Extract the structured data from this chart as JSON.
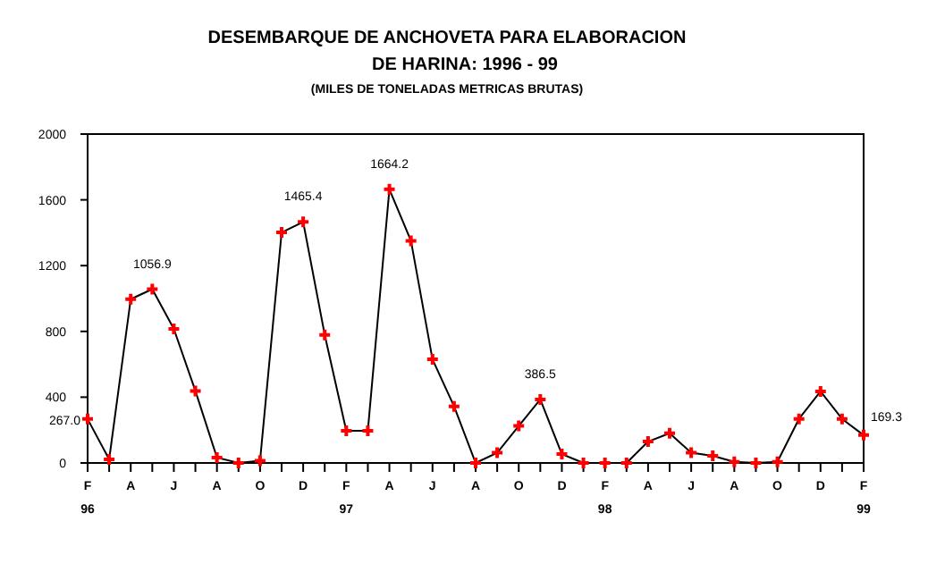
{
  "chart_data": {
    "type": "line",
    "title": "DESEMBARQUE DE ANCHOVETA PARA ELABORACION",
    "subtitle": "DE HARINA: 1996 - 99",
    "ylabel": "(MILES DE TONELADAS METRICAS BRUTAS)",
    "categories": [
      "F\n96",
      null,
      "A",
      null,
      "J",
      null,
      "A",
      null,
      "O",
      null,
      "D",
      null,
      "F\n97",
      null,
      "A",
      null,
      "J",
      null,
      "A",
      null,
      "O",
      null,
      "D",
      null,
      "F\n98",
      null,
      "A",
      null,
      "J",
      null,
      "A",
      null,
      "O",
      null,
      "D",
      null,
      "F\n99"
    ],
    "series": [
      {
        "color": "#ff0000",
        "values": [
          267.0,
          22,
          996,
          1056.9,
          815,
          438,
          33,
          0,
          14,
          1402,
          1465.4,
          779,
          196,
          196,
          1664.2,
          1351,
          630,
          344,
          0,
          62,
          225,
          386.5,
          54,
          0,
          0,
          0,
          130,
          181,
          62,
          43,
          7,
          0,
          7,
          268,
          435,
          268,
          169.3
        ],
        "value_labels": [
          "267.0",
          null,
          null,
          "1056.9",
          null,
          null,
          null,
          null,
          null,
          null,
          "1465.4",
          null,
          null,
          null,
          "1664.2",
          null,
          null,
          null,
          null,
          null,
          null,
          "386.5",
          null,
          null,
          null,
          null,
          null,
          null,
          null,
          null,
          null,
          null,
          null,
          null,
          null,
          null,
          "169.3"
        ]
      }
    ],
    "ylim": [
      0,
      2000
    ],
    "yticks": [
      0,
      400,
      800,
      1200,
      1600,
      2000
    ],
    "grid": false,
    "marker": "cross",
    "line_style": "solid"
  }
}
